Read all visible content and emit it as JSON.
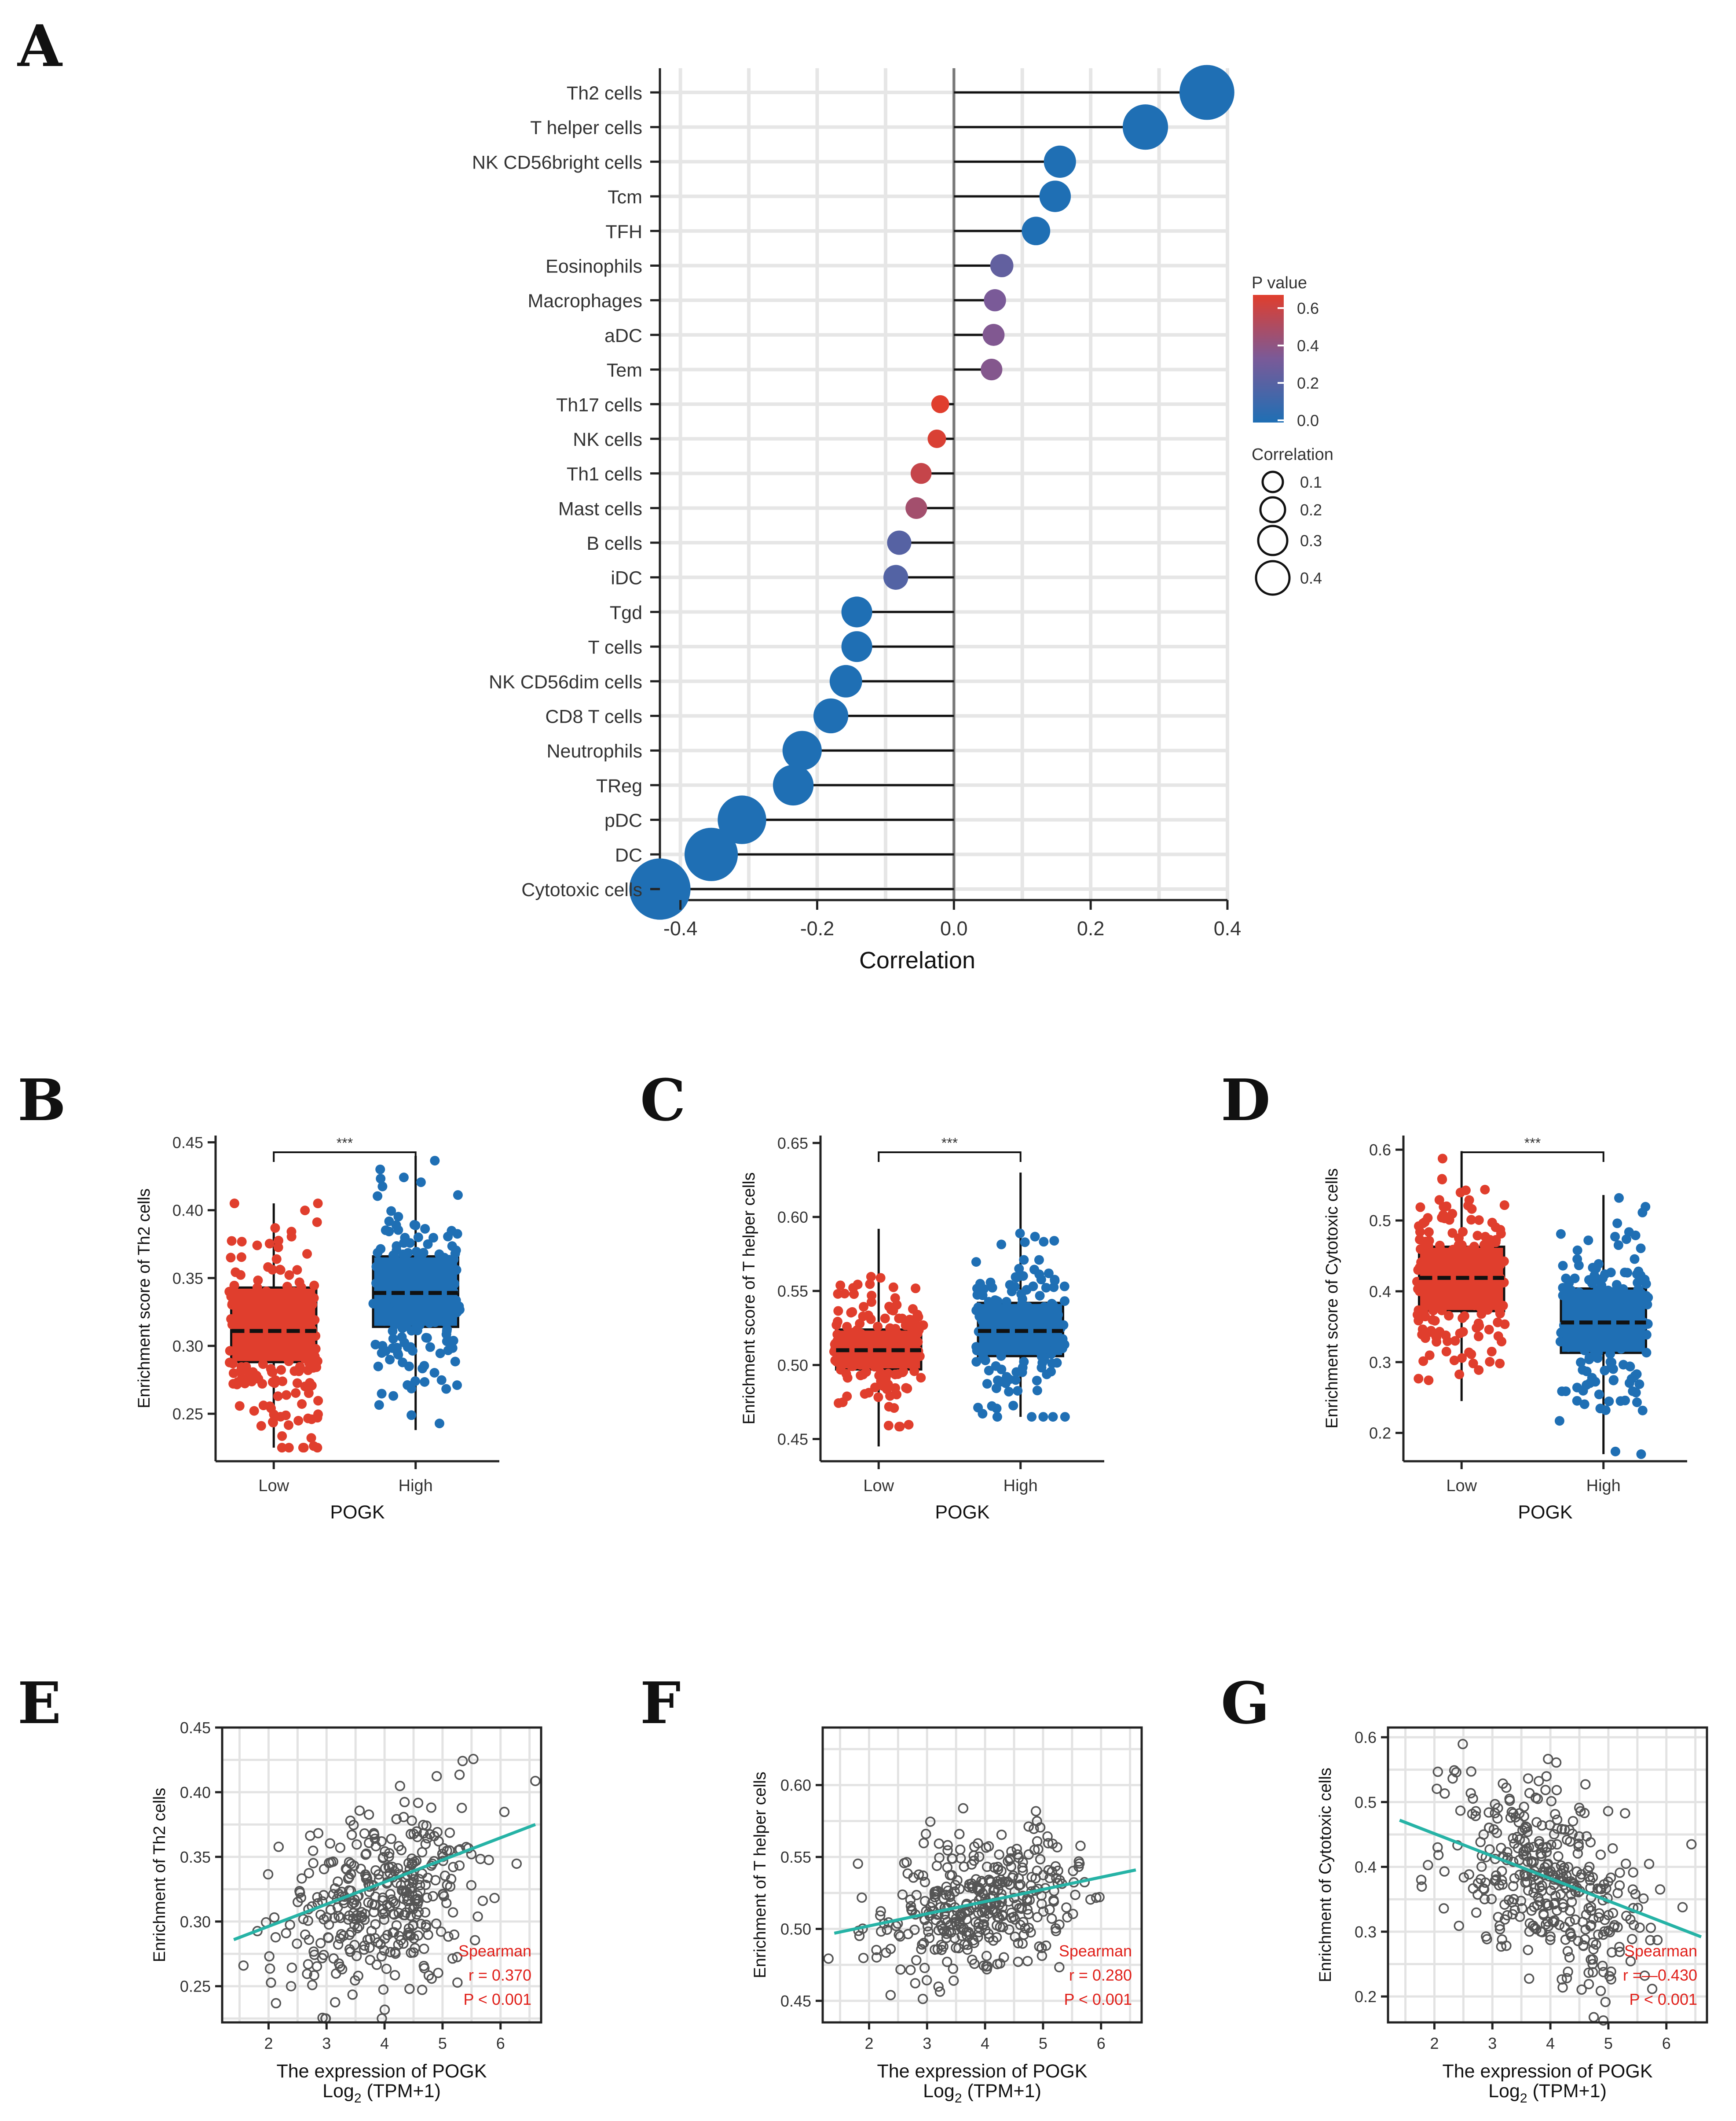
{
  "panel_labels": [
    "A",
    "B",
    "C",
    "D",
    "E",
    "F",
    "G"
  ],
  "chart_data": [
    {
      "id": "A",
      "type": "lollipop",
      "xlabel": "Correlation",
      "xlim": [
        -0.43,
        0.4
      ],
      "xticks": [
        -0.4,
        -0.2,
        0.0,
        0.2,
        0.4
      ],
      "xtick_labels": [
        "-0.4",
        "-0.2",
        "0.0",
        "0.2",
        "0.4"
      ],
      "categories": [
        "Th2 cells",
        "T helper cells",
        "NK CD56bright cells",
        "Tcm",
        "TFH",
        "Eosinophils",
        "Macrophages",
        "aDC",
        "Tem",
        "Th17 cells",
        "NK cells",
        "Th1 cells",
        "Mast cells",
        "B cells",
        "iDC",
        "Tgd",
        "T cells",
        "NK CD56dim cells",
        "CD8 T cells",
        "Neutrophils",
        "TReg",
        "pDC",
        "DC",
        "Cytotoxic cells"
      ],
      "values": [
        0.37,
        0.28,
        0.155,
        0.148,
        0.12,
        0.07,
        0.06,
        0.058,
        0.055,
        -0.02,
        -0.025,
        -0.048,
        -0.055,
        -0.08,
        -0.085,
        -0.142,
        -0.142,
        -0.158,
        -0.18,
        -0.222,
        -0.235,
        -0.31,
        -0.355,
        -0.43
      ],
      "p_values": [
        0.0,
        0.0,
        0.0,
        0.0,
        0.0,
        0.22,
        0.3,
        0.32,
        0.33,
        0.62,
        0.58,
        0.52,
        0.42,
        0.18,
        0.17,
        0.0,
        0.0,
        0.0,
        0.0,
        0.0,
        0.0,
        0.0,
        0.0,
        0.0
      ],
      "legend": {
        "color_title": "P value",
        "color_ticks": [
          "0.6",
          "0.4",
          "0.2",
          "0.0"
        ],
        "size_title": "Correlation",
        "size_ticks": [
          "0.1",
          "0.2",
          "0.3",
          "0.4"
        ]
      },
      "colors": {
        "low_p": "#1f6fb4",
        "mid_p": "#7a5a98",
        "high_p": "#e03e2d"
      }
    },
    {
      "id": "B",
      "type": "box",
      "ylabel": "Enrichment score of Th2 cells",
      "xlabel": "POGK",
      "categories": [
        "Low",
        "High"
      ],
      "significance": "***",
      "ylim": [
        0.215,
        0.455
      ],
      "yticks": [
        "0.25",
        "0.30",
        "0.35",
        "0.40",
        "0.45"
      ],
      "boxes": [
        {
          "name": "Low",
          "min": 0.225,
          "q1": 0.288,
          "median": 0.311,
          "q3": 0.343,
          "max": 0.405,
          "color": "#e03e2d"
        },
        {
          "name": "High",
          "min": 0.238,
          "q1": 0.314,
          "median": 0.339,
          "q3": 0.366,
          "max": 0.44,
          "color": "#1f6fb4"
        }
      ]
    },
    {
      "id": "C",
      "type": "box",
      "ylabel": "Enrichment score of T helper cells",
      "xlabel": "POGK",
      "categories": [
        "Low",
        "High"
      ],
      "significance": "***",
      "ylim": [
        0.435,
        0.655
      ],
      "yticks": [
        "0.45",
        "0.50",
        "0.55",
        "0.60",
        "0.65"
      ],
      "boxes": [
        {
          "name": "Low",
          "min": 0.445,
          "q1": 0.497,
          "median": 0.51,
          "q3": 0.524,
          "max": 0.592,
          "color": "#e03e2d"
        },
        {
          "name": "High",
          "min": 0.465,
          "q1": 0.506,
          "median": 0.523,
          "q3": 0.542,
          "max": 0.63,
          "color": "#1f6fb4"
        }
      ]
    },
    {
      "id": "D",
      "type": "box",
      "ylabel": "Enrichment score of Cytotoxic cells",
      "xlabel": "POGK",
      "categories": [
        "Low",
        "High"
      ],
      "significance": "***",
      "ylim": [
        0.16,
        0.62
      ],
      "yticks": [
        "0.2",
        "0.3",
        "0.4",
        "0.5",
        "0.6"
      ],
      "boxes": [
        {
          "name": "Low",
          "min": 0.245,
          "q1": 0.372,
          "median": 0.419,
          "q3": 0.463,
          "max": 0.598,
          "color": "#e03e2d"
        },
        {
          "name": "High",
          "min": 0.17,
          "q1": 0.313,
          "median": 0.356,
          "q3": 0.404,
          "max": 0.536,
          "color": "#1f6fb4"
        }
      ]
    },
    {
      "id": "E",
      "type": "scatter",
      "ylabel": "Enrichment of Th2 cells",
      "xlabel": "The expression of POGK",
      "xlabel2": "Log",
      "xlabel2_sub": "2",
      "xlabel2_tail": " (TPM+1)",
      "xlim": [
        1.2,
        6.7
      ],
      "ylim": [
        0.222,
        0.45
      ],
      "xticks": [
        "2",
        "3",
        "4",
        "5",
        "6"
      ],
      "yticks": [
        "0.25",
        "0.30",
        "0.35",
        "0.40",
        "0.45"
      ],
      "fit_line": {
        "x": [
          1.4,
          6.6
        ],
        "y": [
          0.286,
          0.375
        ]
      },
      "stats": [
        "Spearman",
        "r = 0.370",
        "P < 0.001"
      ],
      "center": [
        3.9,
        0.318
      ],
      "spread": [
        0.85,
        0.035
      ],
      "slope": 0.017
    },
    {
      "id": "F",
      "type": "scatter",
      "ylabel": "Enrichment of T helper cells",
      "xlabel": "The expression of POGK",
      "xlabel2": "Log",
      "xlabel2_sub": "2",
      "xlabel2_tail": " (TPM+1)",
      "xlim": [
        1.2,
        6.7
      ],
      "ylim": [
        0.435,
        0.64
      ],
      "xticks": [
        "2",
        "3",
        "4",
        "5",
        "6"
      ],
      "yticks": [
        "0.45",
        "0.50",
        "0.55",
        "0.60"
      ],
      "fit_line": {
        "x": [
          1.4,
          6.6
        ],
        "y": [
          0.497,
          0.541
        ]
      },
      "stats": [
        "Spearman",
        "r = 0.280",
        "P < 0.001"
      ],
      "center": [
        3.9,
        0.517
      ],
      "spread": [
        0.85,
        0.024
      ],
      "slope": 0.0085
    },
    {
      "id": "G",
      "type": "scatter",
      "ylabel": "Enrichment of Cytotoxic cells",
      "xlabel": "The expression of POGK",
      "xlabel2": "Log",
      "xlabel2_sub": "2",
      "xlabel2_tail": " (TPM+1)",
      "xlim": [
        1.2,
        6.7
      ],
      "ylim": [
        0.16,
        0.615
      ],
      "xticks": [
        "2",
        "3",
        "4",
        "5",
        "6"
      ],
      "yticks": [
        "0.2",
        "0.3",
        "0.4",
        "0.5",
        "0.6"
      ],
      "fit_line": {
        "x": [
          1.4,
          6.6
        ],
        "y": [
          0.472,
          0.292
        ]
      },
      "stats": [
        "Spearman",
        "r =——0.430",
        "P < 0.001"
      ],
      "stats_display": [
        "Spearman",
        "r =—0.430",
        "P < 0.001"
      ],
      "center": [
        3.9,
        0.385
      ],
      "spread": [
        0.85,
        0.07
      ],
      "slope": -0.035
    }
  ]
}
